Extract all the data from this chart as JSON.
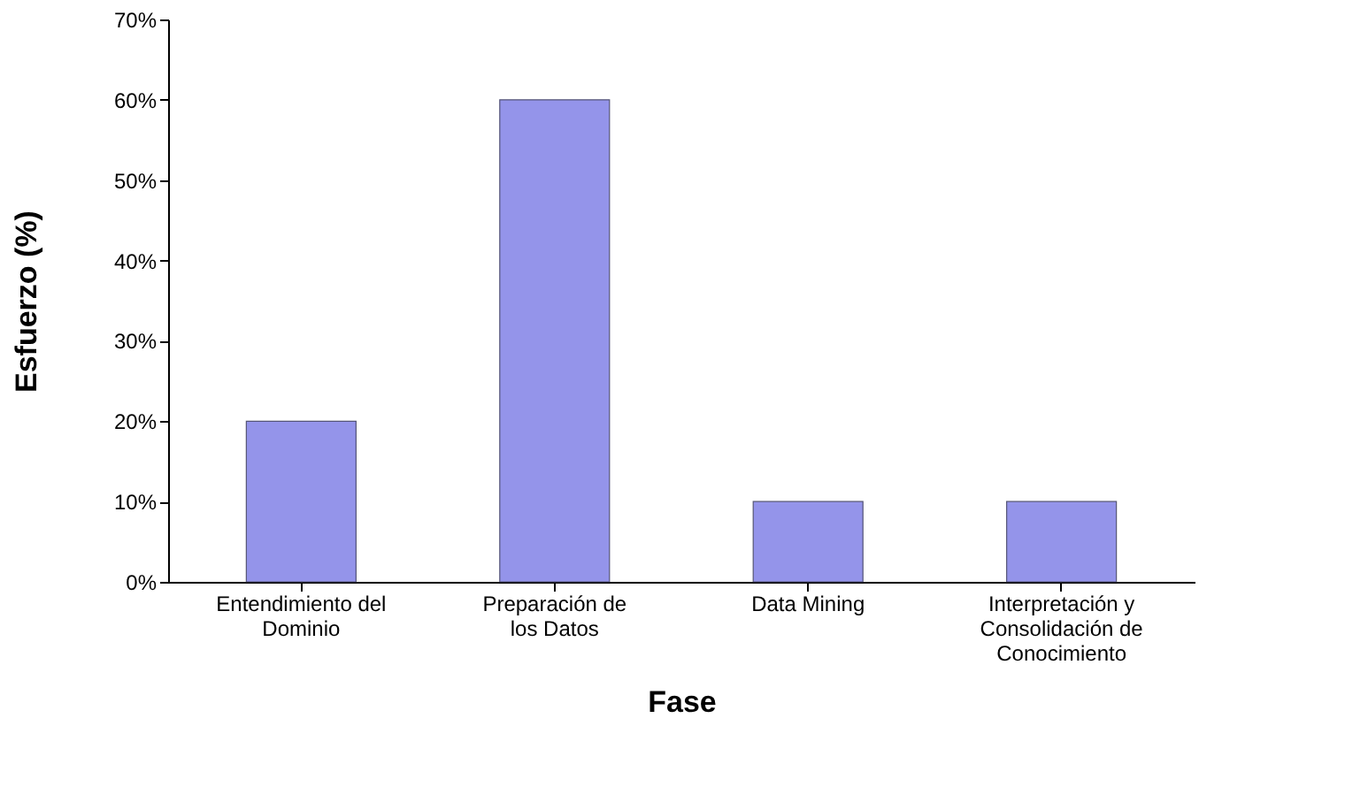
{
  "chart_data": {
    "type": "bar",
    "xlabel": "Fase",
    "ylabel": "Esfuerzo (%)",
    "categories": [
      "Entendimiento del Dominio",
      "Preparación de los Datos",
      "Data Mining",
      "Interpretación y Consolidación de Conocimiento"
    ],
    "values": [
      20,
      60,
      10,
      10
    ],
    "color": "#9494ea",
    "ylim": [
      0,
      70
    ],
    "yticks": [
      {
        "value": 0,
        "label": "0%"
      },
      {
        "value": 10,
        "label": "10%"
      },
      {
        "value": 20,
        "label": "20%"
      },
      {
        "value": 30,
        "label": "30%"
      },
      {
        "value": 40,
        "label": "40%"
      },
      {
        "value": 50,
        "label": "50%"
      },
      {
        "value": 60,
        "label": "60%"
      },
      {
        "value": 70,
        "label": "70%"
      }
    ],
    "grid": false
  }
}
